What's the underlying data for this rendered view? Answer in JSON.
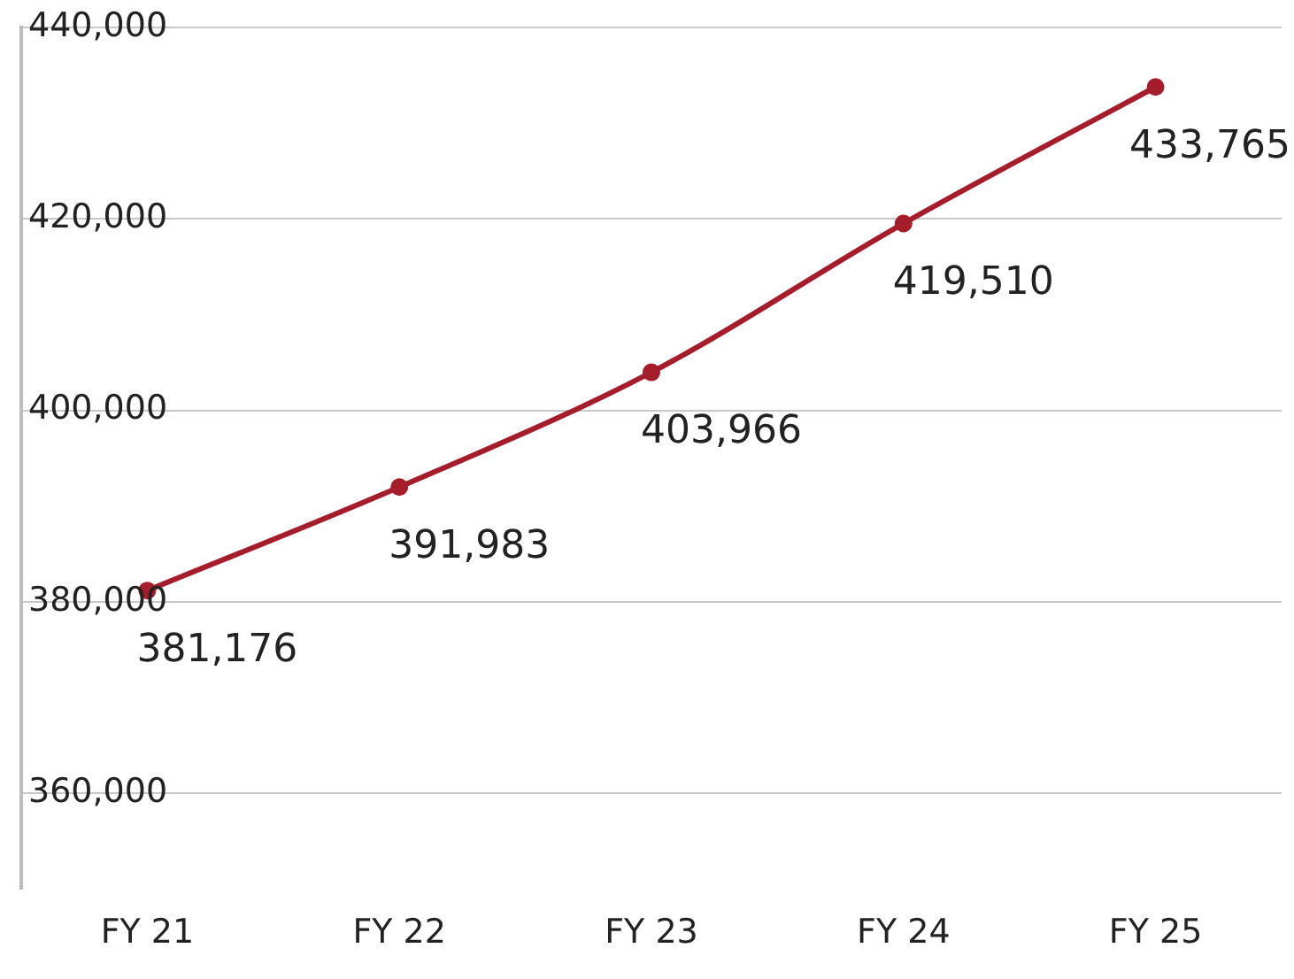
{
  "chart_data": {
    "type": "line",
    "categories": [
      "FY 21",
      "FY 22",
      "FY 23",
      "FY 24",
      "FY 25"
    ],
    "series": [
      {
        "color": "#a51c2a",
        "values": [
          381176,
          391983,
          403966,
          419510,
          433765
        ],
        "value_labels": [
          "381,176",
          "391,983",
          "403,966",
          "419,510",
          "433,765"
        ]
      }
    ],
    "ylim": [
      350000,
      440000
    ],
    "yticks": [
      {
        "value": 360000,
        "label": "360,000"
      },
      {
        "value": 380000,
        "label": "380,000"
      },
      {
        "value": 400000,
        "label": "400,000"
      },
      {
        "value": 420000,
        "label": "420,000"
      },
      {
        "value": 440000,
        "label": "440,000"
      }
    ],
    "grid": "y",
    "legend": false,
    "marker": "circle",
    "line_style": "solid"
  }
}
